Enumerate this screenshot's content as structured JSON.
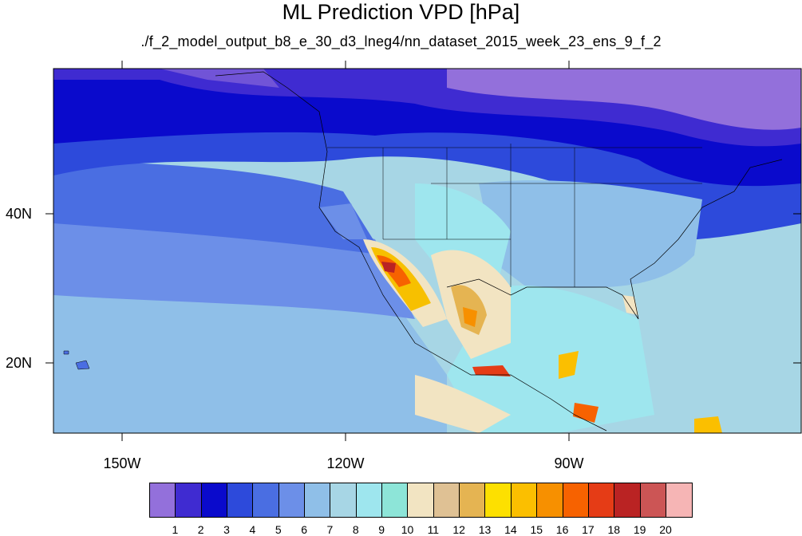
{
  "title": "ML Prediction VPD [hPa]",
  "subtitle": "./f_2_model_output_b8_e_30_d3_lneg4/nn_dataset_2015_week_23_ens_9_f_2",
  "longitude_labels": [
    "150W",
    "120W",
    "90W"
  ],
  "latitude_labels": [
    "40N",
    "20N"
  ],
  "colorbar": {
    "labels": [
      "1",
      "2",
      "3",
      "4",
      "5",
      "6",
      "7",
      "8",
      "9",
      "10",
      "11",
      "12",
      "13",
      "14",
      "15",
      "16",
      "17",
      "18",
      "19",
      "20"
    ],
    "colors": [
      "#9370db",
      "#3f2bd1",
      "#0a0acc",
      "#2d4adb",
      "#4a6ee2",
      "#6c8fe8",
      "#8fbfe8",
      "#a7d6e5",
      "#9ee6ee",
      "#8de5d8",
      "#f2e4c2",
      "#dfc194",
      "#e5b452",
      "#fde000",
      "#fbbf00",
      "#f79000",
      "#f76200",
      "#e53c16",
      "#ba2323",
      "#cc5555",
      "#f6b5b5"
    ]
  }
}
